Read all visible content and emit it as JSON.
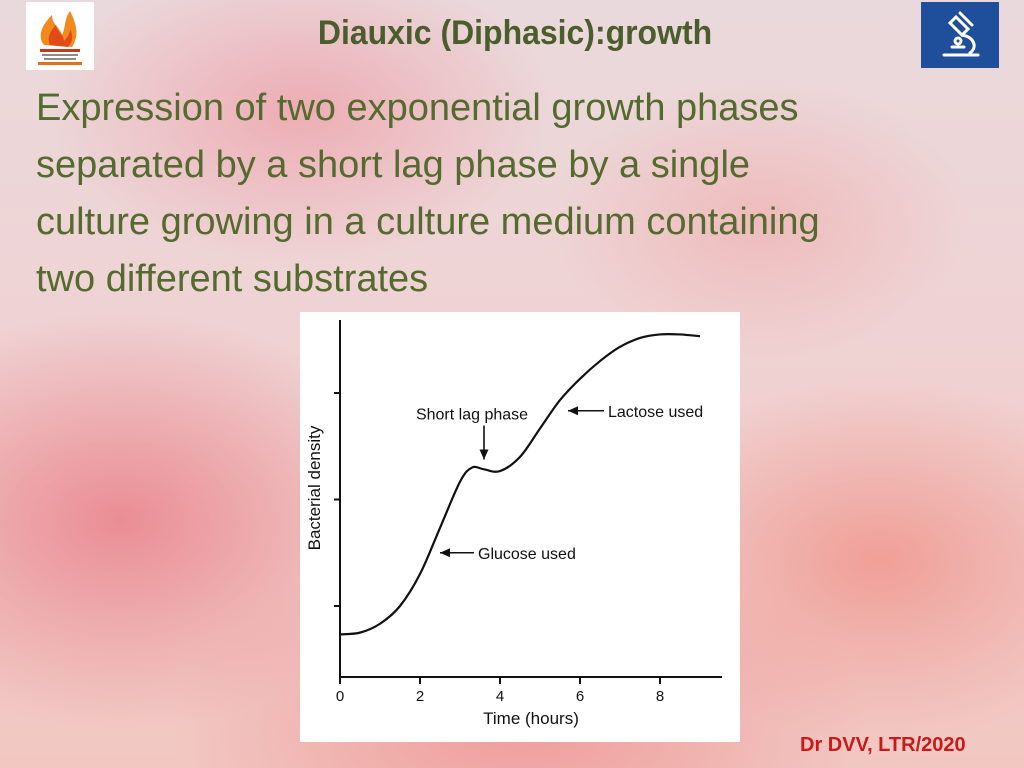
{
  "header": {
    "title": "Diauxic (Diphasic):growth",
    "left_logo_icon": "flame-emblem-logo",
    "right_logo_icon": "microscope-icon"
  },
  "definition_lines": [
    "Expression of two exponential growth phases",
    "separated by a short lag phase by a single",
    "culture growing in a culture medium containing",
    "two different substrates"
  ],
  "chart_data": {
    "type": "line",
    "xlabel": "Time (hours)",
    "ylabel": "Bacterial density",
    "xlim": [
      0,
      9.5
    ],
    "ylim": [
      0,
      1
    ],
    "x_ticks": [
      0,
      2,
      4,
      6,
      8
    ],
    "y_ticks_labeled": false,
    "grid": false,
    "series": [
      {
        "x": [
          0,
          0.5,
          1,
          1.5,
          2,
          2.5,
          3,
          3.3,
          3.6,
          4,
          4.5,
          5,
          5.5,
          6,
          6.5,
          7,
          7.5,
          8,
          8.5,
          9
        ],
        "y": [
          0.12,
          0.125,
          0.15,
          0.2,
          0.29,
          0.42,
          0.55,
          0.59,
          0.585,
          0.58,
          0.62,
          0.7,
          0.78,
          0.84,
          0.89,
          0.93,
          0.955,
          0.965,
          0.965,
          0.96
        ]
      }
    ],
    "annotations": [
      {
        "text": "Glucose used",
        "x": 2.4,
        "y": 0.35
      },
      {
        "text": "Short lag phase",
        "x": 3.6,
        "y": 0.59
      },
      {
        "text": "Lactose used",
        "x": 5.6,
        "y": 0.75
      }
    ]
  },
  "footer": {
    "credit": "Dr DVV, LTR/2020"
  },
  "colors": {
    "title": "#4a5e2c",
    "body_text": "#556a2e",
    "credit": "#c81a1a",
    "right_logo_bg": "#1f4f9a"
  }
}
